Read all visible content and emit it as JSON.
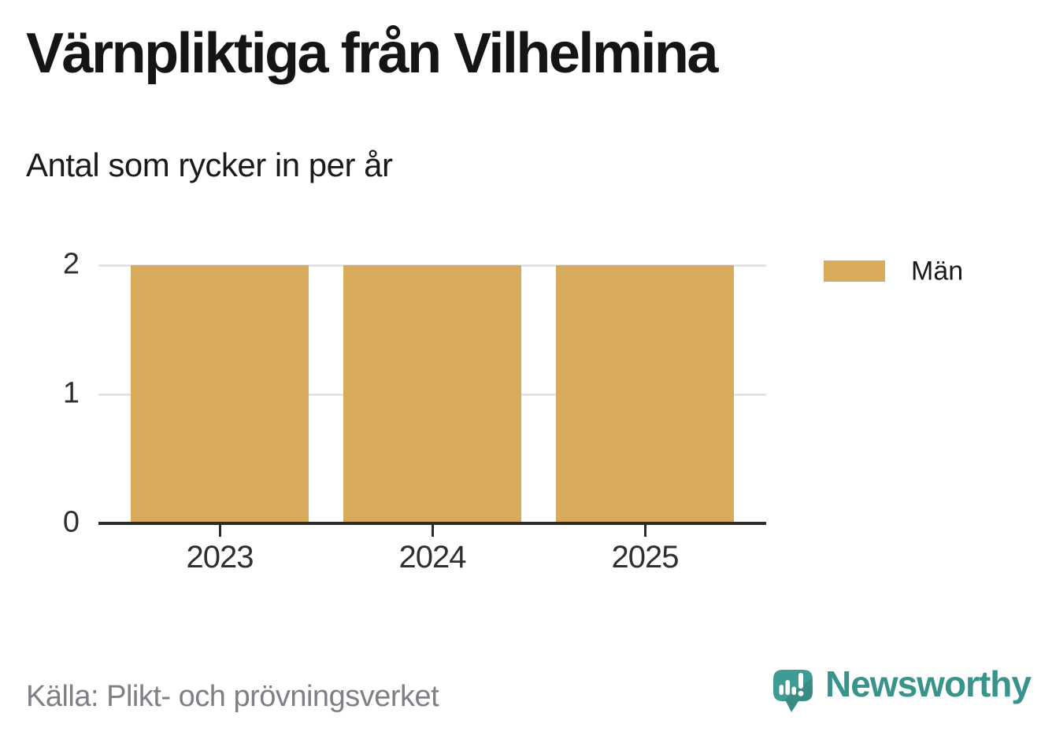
{
  "header": {
    "title": "Värnpliktiga från Vilhelmina",
    "subtitle": "Antal som rycker in per år"
  },
  "chart_data": {
    "type": "bar",
    "categories": [
      "2023",
      "2024",
      "2025"
    ],
    "series": [
      {
        "name": "Män",
        "values": [
          2,
          2,
          2
        ],
        "color": "#d8aa5b"
      }
    ],
    "title": "Värnpliktiga från Vilhelmina",
    "subtitle": "Antal som rycker in per år",
    "xlabel": "",
    "ylabel": "",
    "ylim": [
      0,
      2
    ],
    "yticks": [
      0,
      1,
      2
    ],
    "grid": true,
    "legend_position": "right"
  },
  "legend": {
    "items": [
      {
        "label": "Män",
        "color": "#d8aa5b"
      }
    ]
  },
  "footer": {
    "source": "Källa: Plikt- och prövningsverket",
    "brand_name": "Newsworthy"
  },
  "colors": {
    "bar": "#d8aa5b",
    "grid": "#e4e4e4",
    "axis": "#2b2b2b",
    "axis_label": "#2f2f2f",
    "source_text": "#7f7f85",
    "brand_teal": "#38948b"
  }
}
